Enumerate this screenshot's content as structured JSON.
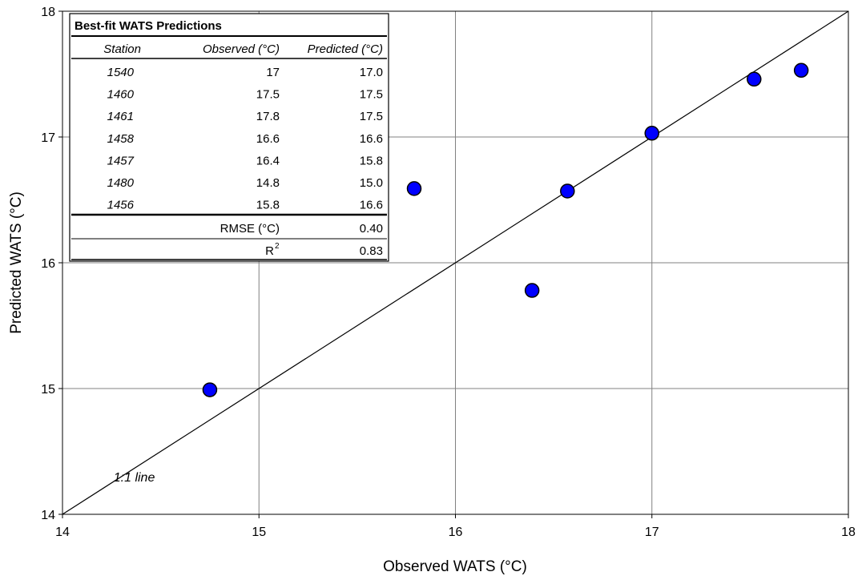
{
  "chart_data": {
    "type": "scatter",
    "title": "",
    "xlabel": "Observed WATS (°C)",
    "ylabel": "Predicted WATS (°C)",
    "xlim": [
      14,
      18
    ],
    "ylim": [
      14,
      18
    ],
    "xticks": [
      "14",
      "15",
      "16",
      "17",
      "18"
    ],
    "yticks": [
      "14",
      "15",
      "16",
      "17",
      "18"
    ],
    "grid": true,
    "marker_color": "#0000FF",
    "series": [
      {
        "x": [
          17.0,
          17.52,
          17.76,
          16.57,
          16.39,
          14.75,
          15.79
        ],
        "y": [
          17.03,
          17.46,
          17.53,
          16.57,
          15.78,
          14.99,
          16.59
        ]
      }
    ],
    "reference_line": {
      "label": "1:1 line",
      "from": [
        14,
        14
      ],
      "to": [
        18,
        18
      ]
    },
    "inset_table": {
      "title": "Best-fit WATS Predictions",
      "headers": [
        "Station",
        "Observed (°C)",
        "Predicted (°C)"
      ],
      "rows": [
        [
          "1540",
          "17",
          "17.0"
        ],
        [
          "1460",
          "17.5",
          "17.5"
        ],
        [
          "1461",
          "17.8",
          "17.5"
        ],
        [
          "1458",
          "16.6",
          "16.6"
        ],
        [
          "1457",
          "16.4",
          "15.8"
        ],
        [
          "1480",
          "14.8",
          "15.0"
        ],
        [
          "1456",
          "15.8",
          "16.6"
        ]
      ],
      "rmse_label": "RMSE (°C)",
      "rmse_value": "0.40",
      "r2_label": "R",
      "r2_sup": "2",
      "r2_value": "0.83"
    }
  }
}
